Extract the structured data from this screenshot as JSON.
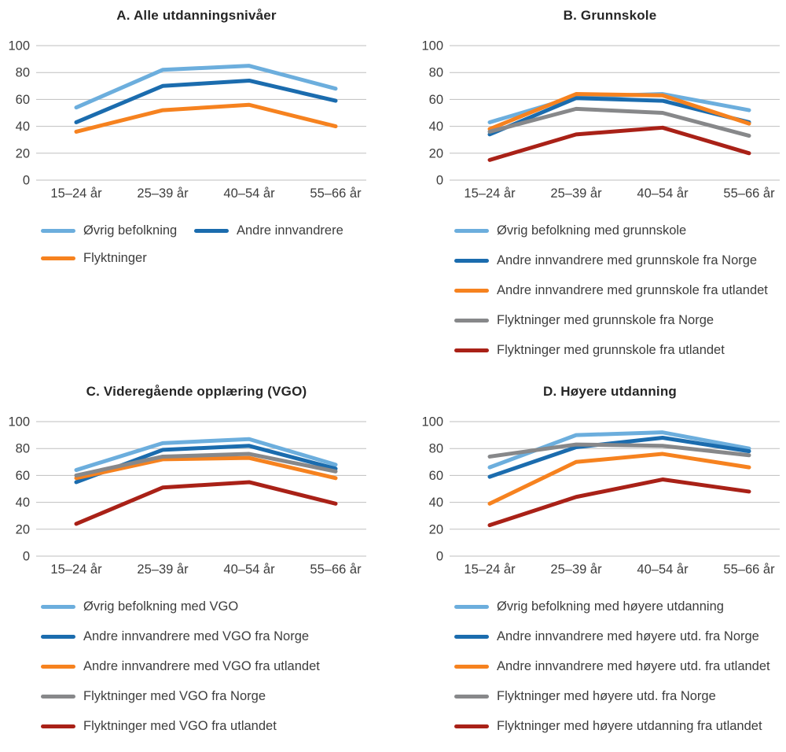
{
  "page": {
    "background": "#ffffff",
    "gridline_color": "#bfbfbf",
    "text_color": "#3d3d3d",
    "title_color": "#262626"
  },
  "palette": {
    "light_blue": "#6caedd",
    "dark_blue": "#1b6cae",
    "orange": "#f6821f",
    "gray": "#87888a",
    "dark_red": "#a92117"
  },
  "chart_data": [
    {
      "type": "line",
      "title": "A. Alle utdanningsnivåer",
      "categories": [
        "15–24 år",
        "25–39 år",
        "40–54 år",
        "55–66 år"
      ],
      "ylim": [
        0,
        100
      ],
      "y_ticks": [
        0,
        20,
        40,
        60,
        80,
        100
      ],
      "grid": "horizontal",
      "legend_position": "bottom",
      "legend_columns": 2,
      "series": [
        {
          "name": "Øvrig befolkning",
          "color": "#6caedd",
          "values": [
            54,
            82,
            85,
            68
          ]
        },
        {
          "name": "Andre innvandrere",
          "color": "#1b6cae",
          "values": [
            43,
            70,
            74,
            59
          ]
        },
        {
          "name": "Flyktninger",
          "color": "#f6821f",
          "values": [
            36,
            52,
            56,
            40
          ]
        }
      ]
    },
    {
      "type": "line",
      "title": "B. Grunnskole",
      "categories": [
        "15–24 år",
        "25–39 år",
        "40–54 år",
        "55–66 år"
      ],
      "ylim": [
        0,
        100
      ],
      "y_ticks": [
        0,
        20,
        40,
        60,
        80,
        100
      ],
      "grid": "horizontal",
      "legend_position": "bottom",
      "legend_columns": 1,
      "series": [
        {
          "name": "Øvrig befolkning med grunnskole",
          "color": "#6caedd",
          "values": [
            43,
            62,
            64,
            52
          ]
        },
        {
          "name": "Andre innvandrere med grunnskole fra Norge",
          "color": "#1b6cae",
          "values": [
            34,
            61,
            59,
            43
          ]
        },
        {
          "name": "Andre innvandrere med grunnskole fra utlandet",
          "color": "#f6821f",
          "values": [
            38,
            64,
            63,
            42
          ]
        },
        {
          "name": "Flyktninger med grunnskole fra Norge",
          "color": "#87888a",
          "values": [
            36,
            53,
            50,
            33
          ]
        },
        {
          "name": "Flyktninger med grunnskole fra utlandet",
          "color": "#a92117",
          "values": [
            15,
            34,
            39,
            20
          ]
        }
      ]
    },
    {
      "type": "line",
      "title": "C. Videregående opplæring (VGO)",
      "categories": [
        "15–24 år",
        "25–39 år",
        "40–54 år",
        "55–66 år"
      ],
      "ylim": [
        0,
        100
      ],
      "y_ticks": [
        0,
        20,
        40,
        60,
        80,
        100
      ],
      "grid": "horizontal",
      "legend_position": "bottom",
      "legend_columns": 1,
      "series": [
        {
          "name": "Øvrig befolkning med VGO",
          "color": "#6caedd",
          "values": [
            64,
            84,
            87,
            68
          ]
        },
        {
          "name": "Andre innvandrere med VGO fra Norge",
          "color": "#1b6cae",
          "values": [
            55,
            79,
            82,
            65
          ]
        },
        {
          "name": "Andre innvandrere med VGO fra utlandet",
          "color": "#f6821f",
          "values": [
            58,
            72,
            73,
            58
          ]
        },
        {
          "name": "Flyktninger med VGO fra Norge",
          "color": "#87888a",
          "values": [
            60,
            74,
            76,
            63
          ]
        },
        {
          "name": "Flyktninger med VGO fra utlandet",
          "color": "#a92117",
          "values": [
            24,
            51,
            55,
            39
          ]
        }
      ]
    },
    {
      "type": "line",
      "title": "D. Høyere utdanning",
      "categories": [
        "15–24 år",
        "25–39 år",
        "40–54 år",
        "55–66 år"
      ],
      "ylim": [
        0,
        100
      ],
      "y_ticks": [
        0,
        20,
        40,
        60,
        80,
        100
      ],
      "grid": "horizontal",
      "legend_position": "bottom",
      "legend_columns": 1,
      "series": [
        {
          "name": "Øvrig befolkning med høyere utdanning",
          "color": "#6caedd",
          "values": [
            66,
            90,
            92,
            80
          ]
        },
        {
          "name": "Andre innvandrere med høyere utd. fra Norge",
          "color": "#1b6cae",
          "values": [
            59,
            81,
            88,
            78
          ]
        },
        {
          "name": "Andre innvandrere med høyere utd. fra utlandet",
          "color": "#f6821f",
          "values": [
            39,
            70,
            76,
            66
          ]
        },
        {
          "name": "Flyktninger med høyere utd. fra Norge",
          "color": "#87888a",
          "values": [
            74,
            83,
            82,
            75
          ]
        },
        {
          "name": "Flyktninger med høyere utdanning fra utlandet",
          "color": "#a92117",
          "values": [
            23,
            44,
            57,
            48
          ]
        }
      ]
    }
  ]
}
